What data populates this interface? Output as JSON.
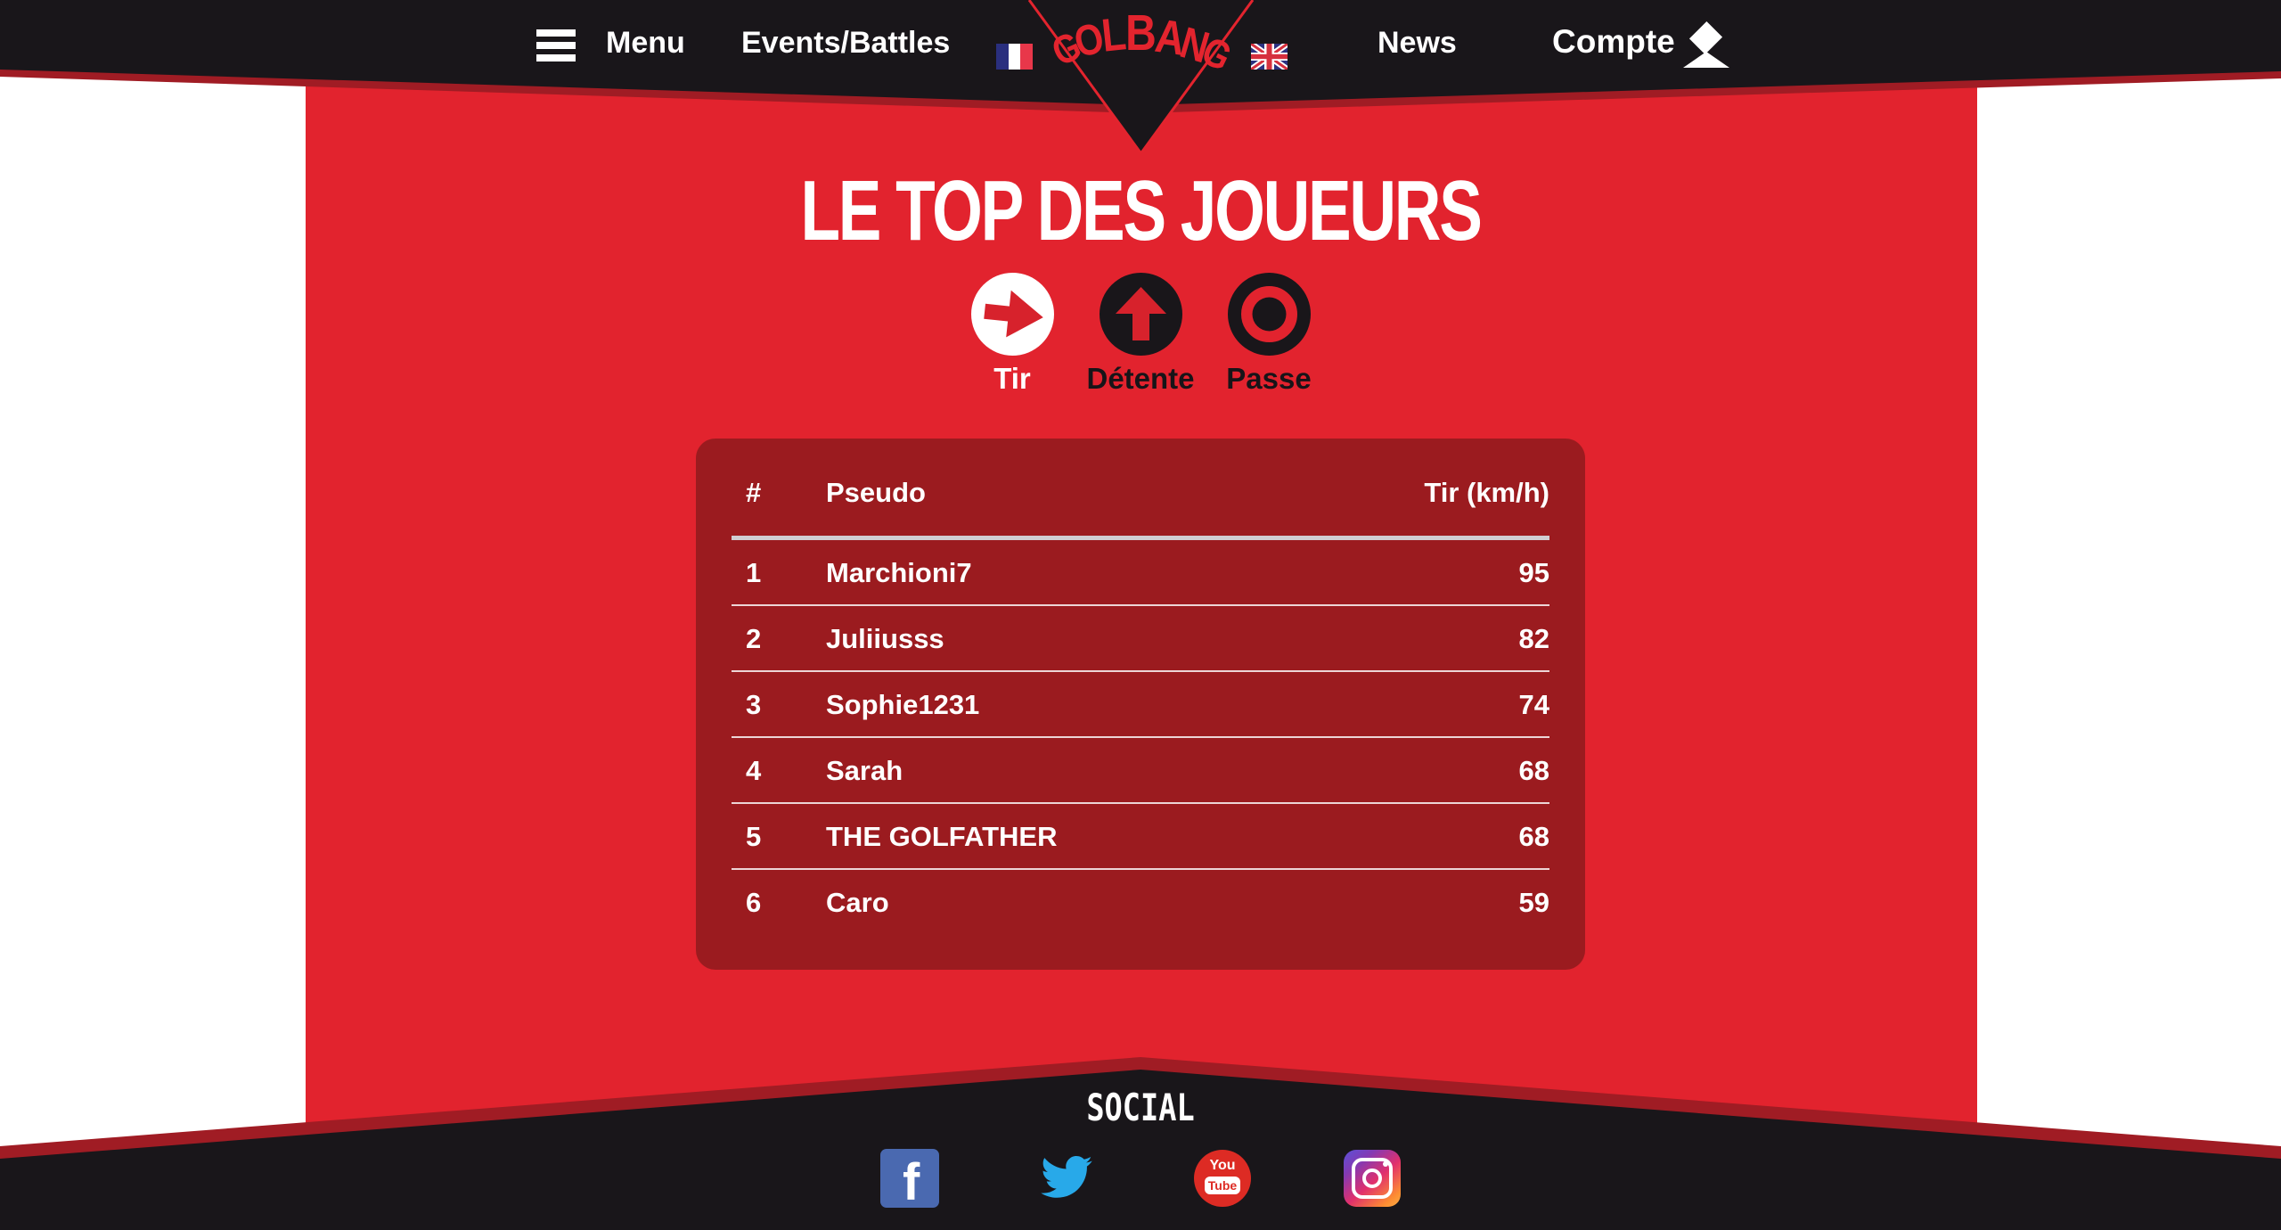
{
  "nav": {
    "menu_label": "Menu",
    "events_label": "Events/Battles",
    "news_label": "News",
    "account_label": "Compte",
    "logo_text": "GOLBANG",
    "languages": [
      "french-flag",
      "uk-flag"
    ]
  },
  "page": {
    "title": "LE TOP DES JOUEURS"
  },
  "tabs": [
    {
      "label": "Tir",
      "icon": "arrow-right-icon",
      "selected": true
    },
    {
      "label": "Détente",
      "icon": "arrow-up-icon",
      "selected": false
    },
    {
      "label": "Passe",
      "icon": "target-icon",
      "selected": false
    }
  ],
  "leaderboard": {
    "columns": [
      "#",
      "Pseudo",
      "Tir (km/h)"
    ],
    "rows": [
      {
        "rank": "1",
        "pseudo": "Marchioni7",
        "value": "95"
      },
      {
        "rank": "2",
        "pseudo": "Juliiusss",
        "value": "82"
      },
      {
        "rank": "3",
        "pseudo": "Sophie1231",
        "value": "74"
      },
      {
        "rank": "4",
        "pseudo": "Sarah",
        "value": "68"
      },
      {
        "rank": "5",
        "pseudo": "THE GOLFATHER",
        "value": "68"
      },
      {
        "rank": "6",
        "pseudo": "Caro",
        "value": "59"
      }
    ]
  },
  "footer": {
    "heading": "SOCIAL",
    "icons": [
      "facebook",
      "twitter",
      "youtube",
      "instagram"
    ],
    "youtube_you": "You",
    "youtube_tube": "Tube"
  },
  "colors": {
    "main_red": "#e2232e",
    "dark_red_panel": "#9b1b1f",
    "edge_red": "#a01c24",
    "near_black": "#19161a",
    "facebook_blue": "#4a69b0",
    "twitter_blue": "#28a9e9",
    "youtube_red": "#dd2b24"
  }
}
